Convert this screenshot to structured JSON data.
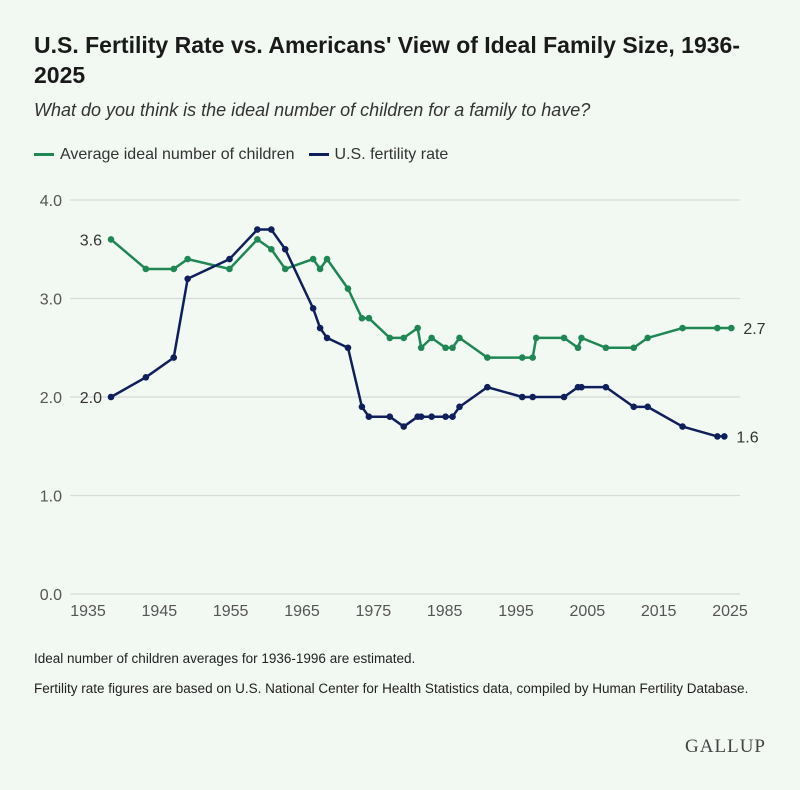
{
  "chart_data": {
    "type": "line",
    "title": "U.S. Fertility Rate vs. Americans' View of Ideal Family Size, 1936-2025",
    "subtitle": "What do you think is the ideal number of children for a family to have?",
    "xlabel": "",
    "ylabel": "",
    "xlim": [
      1935,
      2025
    ],
    "ylim": [
      0,
      4
    ],
    "x_ticks": [
      "1935",
      "1945",
      "1955",
      "1965",
      "1975",
      "1985",
      "1995",
      "2005",
      "2015",
      "2025"
    ],
    "y_ticks": [
      "0.0",
      "1.0",
      "2.0",
      "3.0",
      "4.0"
    ],
    "grid": true,
    "legend_position": "top-left",
    "series": [
      {
        "name": "Average ideal number of children",
        "color": "#1e8754",
        "x": [
          1936,
          1941,
          1945,
          1947,
          1953,
          1957,
          1959,
          1961,
          1965,
          1966,
          1967,
          1970,
          1972,
          1973,
          1976,
          1978,
          1980,
          1980.5,
          1982,
          1984,
          1985,
          1986,
          1990,
          1995,
          1996.5,
          1997,
          2001,
          2003,
          2003.5,
          2007,
          2011,
          2013,
          2018,
          2023,
          2025
        ],
        "values": [
          3.6,
          3.3,
          3.3,
          3.4,
          3.3,
          3.6,
          3.5,
          3.3,
          3.4,
          3.3,
          3.4,
          3.1,
          2.8,
          2.8,
          2.6,
          2.6,
          2.7,
          2.5,
          2.6,
          2.5,
          2.5,
          2.6,
          2.4,
          2.4,
          2.4,
          2.6,
          2.6,
          2.5,
          2.6,
          2.5,
          2.5,
          2.6,
          2.7,
          2.7,
          2.7
        ],
        "start_label": "3.6",
        "end_label": "2.7"
      },
      {
        "name": "U.S. fertility rate",
        "color": "#0f1f5c",
        "x": [
          1936,
          1941,
          1945,
          1947,
          1953,
          1957,
          1959,
          1961,
          1965,
          1966,
          1967,
          1970,
          1972,
          1973,
          1976,
          1978,
          1980,
          1980.5,
          1982,
          1984,
          1985,
          1986,
          1990,
          1995,
          1996.5,
          2001,
          2003,
          2003.5,
          2007,
          2011,
          2013,
          2018,
          2023,
          2024
        ],
        "values": [
          2.0,
          2.2,
          2.4,
          3.2,
          3.4,
          3.7,
          3.7,
          3.5,
          2.9,
          2.7,
          2.6,
          2.5,
          1.9,
          1.8,
          1.8,
          1.7,
          1.8,
          1.8,
          1.8,
          1.8,
          1.8,
          1.9,
          2.1,
          2.0,
          2.0,
          2.0,
          2.1,
          2.1,
          2.1,
          1.9,
          1.9,
          1.7,
          1.6,
          1.6
        ],
        "start_label": "2.0",
        "end_label": "1.6"
      }
    ]
  },
  "notes": [
    "Ideal number of children averages for 1936-1996 are estimated.",
    "Fertility rate figures are based on U.S. National Center for Health Statistics data, compiled by Human Fertility Database."
  ],
  "logo": "GALLUP"
}
